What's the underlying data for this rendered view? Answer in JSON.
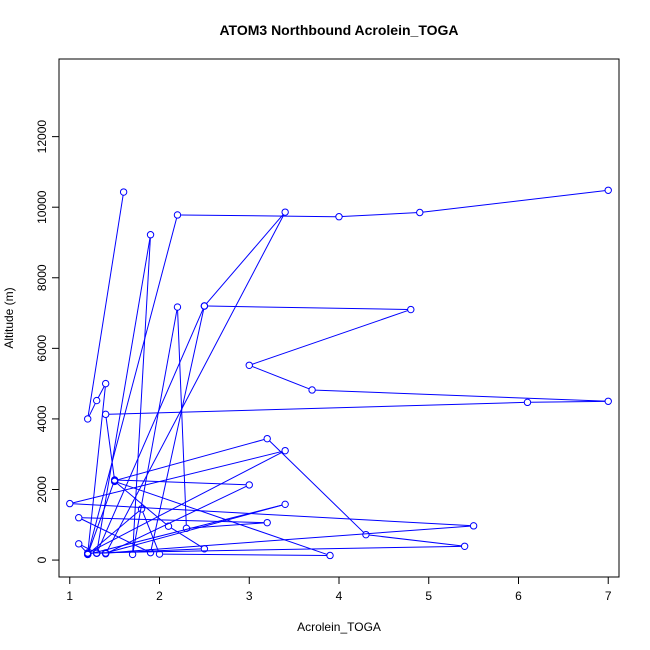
{
  "chart_data": {
    "type": "line",
    "title": "ATOM3 Northbound Acrolein_TOGA",
    "xlabel": "Acrolein_TOGA",
    "ylabel": "Altitude (m)",
    "xlim": [
      0.88,
      7.12
    ],
    "ylim": [
      -480,
      14200
    ],
    "x_ticks": [
      1,
      2,
      3,
      4,
      5,
      6,
      7
    ],
    "y_ticks": [
      0,
      2000,
      4000,
      6000,
      8000,
      10000,
      12000
    ],
    "grid": false,
    "legend": "none",
    "series": [
      {
        "color": "#0000ff",
        "marker": "open-circle",
        "points": [
          [
            1.6,
            10430
          ],
          [
            1.2,
            4000
          ],
          [
            1.3,
            4520
          ],
          [
            1.4,
            5000
          ],
          [
            1.2,
            180
          ],
          [
            1.1,
            460
          ],
          [
            1.3,
            200
          ],
          [
            1.9,
            9220
          ],
          [
            1.7,
            160
          ],
          [
            2.2,
            7170
          ],
          [
            2.3,
            900
          ],
          [
            3.2,
            1060
          ],
          [
            1.1,
            1200
          ],
          [
            1.9,
            210
          ],
          [
            2.5,
            7200
          ],
          [
            3.4,
            9860
          ],
          [
            1.4,
            180
          ],
          [
            3.0,
            2130
          ],
          [
            1.5,
            2270
          ],
          [
            1.2,
            160
          ],
          [
            1.8,
            1450
          ],
          [
            2.0,
            170
          ],
          [
            3.9,
            130
          ],
          [
            1.5,
            2230
          ],
          [
            2.1,
            960
          ],
          [
            2.5,
            320
          ],
          [
            1.3,
            190
          ],
          [
            2.5,
            7200
          ],
          [
            4.8,
            7100
          ],
          [
            3.0,
            5520
          ],
          [
            3.7,
            4820
          ],
          [
            7.0,
            4500
          ],
          [
            6.1,
            4470
          ],
          [
            1.4,
            4130
          ],
          [
            1.5,
            2250
          ],
          [
            3.2,
            3440
          ],
          [
            4.3,
            720
          ],
          [
            5.4,
            390
          ],
          [
            1.2,
            200
          ],
          [
            3.4,
            3100
          ],
          [
            1.0,
            1600
          ],
          [
            5.5,
            970
          ],
          [
            1.4,
            200
          ],
          [
            3.4,
            1580
          ],
          [
            1.2,
            160
          ],
          [
            2.2,
            9780
          ],
          [
            4.0,
            9730
          ],
          [
            4.9,
            9850
          ],
          [
            7.0,
            10480
          ]
        ]
      }
    ]
  }
}
